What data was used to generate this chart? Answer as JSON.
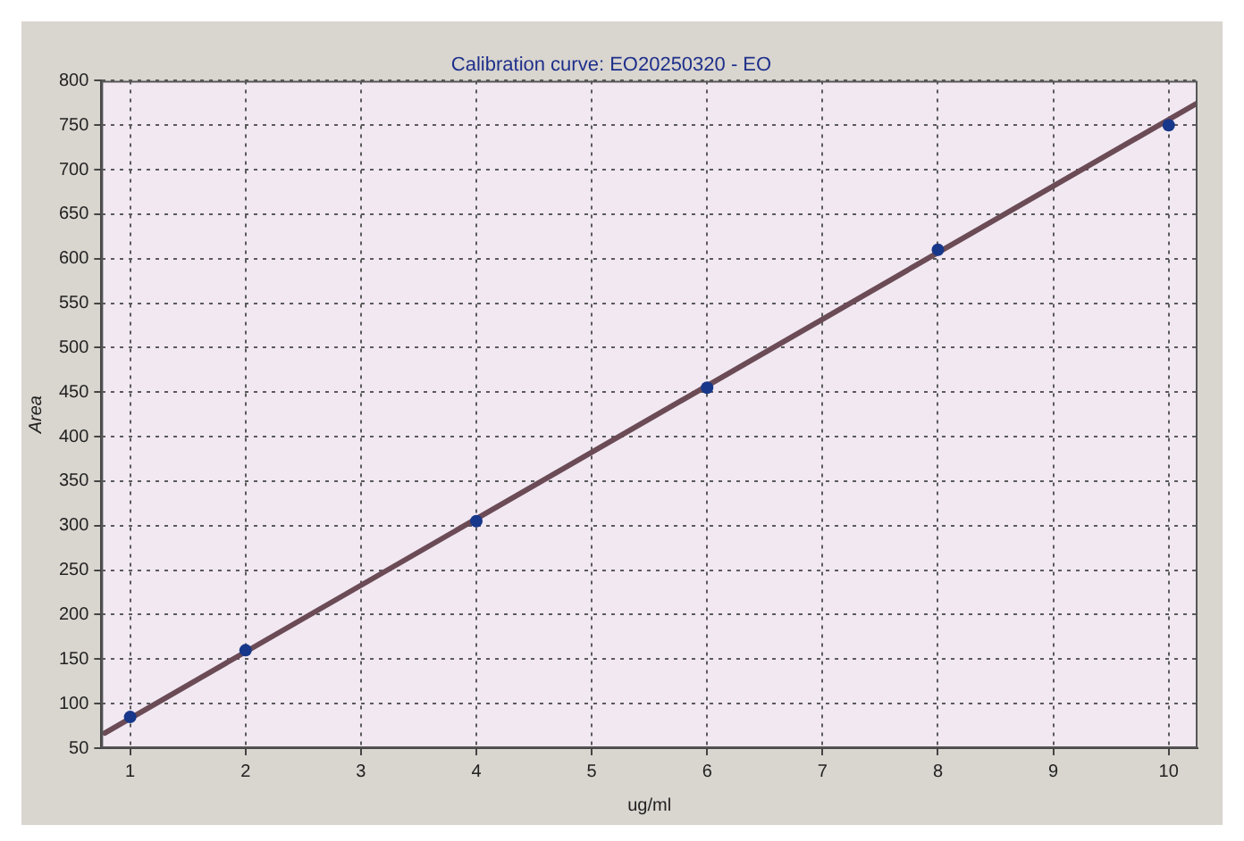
{
  "chart_data": {
    "type": "scatter",
    "title": "Calibration curve: EO20250320 - EO",
    "xlabel": "ug/ml",
    "ylabel": "Area",
    "series": [
      {
        "color": "#17378a",
        "marker": "circle",
        "x": [
          1,
          2,
          4,
          6,
          8,
          10
        ],
        "values": [
          85,
          160,
          305,
          455,
          610,
          750
        ]
      },
      {
        "type": "line",
        "color": "#6b4b55",
        "marker": "none",
        "line_style": "solid",
        "x": [
          0.78,
          10.25
        ],
        "values": [
          67,
          775
        ]
      }
    ],
    "xlim": [
      0.75,
      10.25
    ],
    "ylim": [
      50,
      800
    ],
    "xticks": [
      1,
      2,
      3,
      4,
      5,
      6,
      7,
      8,
      9,
      10
    ],
    "yticks": [
      50,
      100,
      150,
      200,
      250,
      300,
      350,
      400,
      450,
      500,
      550,
      600,
      650,
      700,
      750,
      800
    ],
    "grid": true
  }
}
